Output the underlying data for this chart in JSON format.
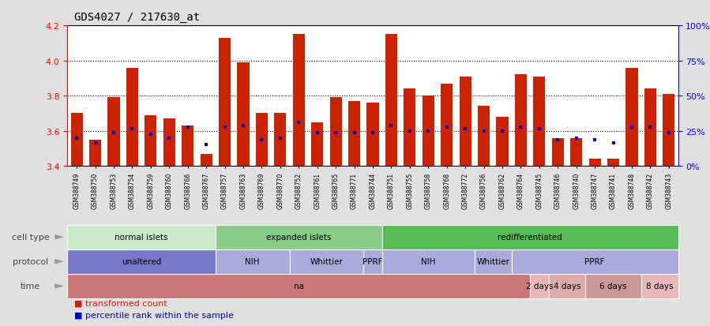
{
  "title": "GDS4027 / 217630_at",
  "samples": [
    "GSM388749",
    "GSM388750",
    "GSM388753",
    "GSM388754",
    "GSM388759",
    "GSM388760",
    "GSM388766",
    "GSM388767",
    "GSM388757",
    "GSM388763",
    "GSM388769",
    "GSM388770",
    "GSM388752",
    "GSM388761",
    "GSM388765",
    "GSM388771",
    "GSM388744",
    "GSM388751",
    "GSM388755",
    "GSM388758",
    "GSM388768",
    "GSM388772",
    "GSM388756",
    "GSM388762",
    "GSM388764",
    "GSM388745",
    "GSM388746",
    "GSM388740",
    "GSM388747",
    "GSM388741",
    "GSM388748",
    "GSM388742",
    "GSM388743"
  ],
  "red_values": [
    3.7,
    3.55,
    3.79,
    3.96,
    3.69,
    3.67,
    3.63,
    3.47,
    4.13,
    3.99,
    3.7,
    3.7,
    4.15,
    3.65,
    3.79,
    3.77,
    3.76,
    4.15,
    3.84,
    3.8,
    3.87,
    3.91,
    3.74,
    3.68,
    3.92,
    3.91,
    3.56,
    3.56,
    3.44,
    3.44,
    3.96,
    3.84,
    3.81
  ],
  "blue_values": [
    3.56,
    3.53,
    3.59,
    3.61,
    3.58,
    3.56,
    3.62,
    3.52,
    3.62,
    3.63,
    3.55,
    3.56,
    3.65,
    3.59,
    3.59,
    3.59,
    3.59,
    3.63,
    3.6,
    3.6,
    3.62,
    3.61,
    3.6,
    3.6,
    3.62,
    3.61,
    3.55,
    3.56,
    3.55,
    3.53,
    3.62,
    3.62,
    3.59
  ],
  "ylim_min": 3.4,
  "ylim_max": 4.2,
  "yticks": [
    3.4,
    3.6,
    3.8,
    4.0,
    4.2
  ],
  "right_yticks_pct": [
    0,
    25,
    50,
    75,
    100
  ],
  "cell_type_groups": [
    {
      "label": "normal islets",
      "start": 0,
      "end": 7,
      "color": "#c8eac8"
    },
    {
      "label": "expanded islets",
      "start": 8,
      "end": 16,
      "color": "#88cc88"
    },
    {
      "label": "redifferentiated",
      "start": 17,
      "end": 32,
      "color": "#55bb55"
    }
  ],
  "protocol_groups": [
    {
      "label": "unaltered",
      "start": 0,
      "end": 7,
      "color": "#7777cc"
    },
    {
      "label": "NIH",
      "start": 8,
      "end": 11,
      "color": "#aaaadd"
    },
    {
      "label": "Whittier",
      "start": 12,
      "end": 15,
      "color": "#aaaadd"
    },
    {
      "label": "PPRF",
      "start": 16,
      "end": 16,
      "color": "#aaaadd"
    },
    {
      "label": "NIH",
      "start": 17,
      "end": 21,
      "color": "#aaaadd"
    },
    {
      "label": "Whittier",
      "start": 22,
      "end": 23,
      "color": "#aaaadd"
    },
    {
      "label": "PPRF",
      "start": 24,
      "end": 32,
      "color": "#aaaadd"
    }
  ],
  "time_groups": [
    {
      "label": "na",
      "start": 0,
      "end": 24,
      "color": "#cc7777"
    },
    {
      "label": "2 days",
      "start": 25,
      "end": 25,
      "color": "#e8b8b8"
    },
    {
      "label": "4 days",
      "start": 26,
      "end": 27,
      "color": "#ddaaaa"
    },
    {
      "label": "6 days",
      "start": 28,
      "end": 30,
      "color": "#cc9999"
    },
    {
      "label": "8 days",
      "start": 31,
      "end": 32,
      "color": "#e8b8b8"
    }
  ],
  "bar_color": "#cc2200",
  "blue_color": "#0000cc",
  "bg_color": "#e0e0e0",
  "plot_bg": "#ffffff",
  "arrow_color": "#999999",
  "label_color": "#000000",
  "row_label_color": "#444444"
}
